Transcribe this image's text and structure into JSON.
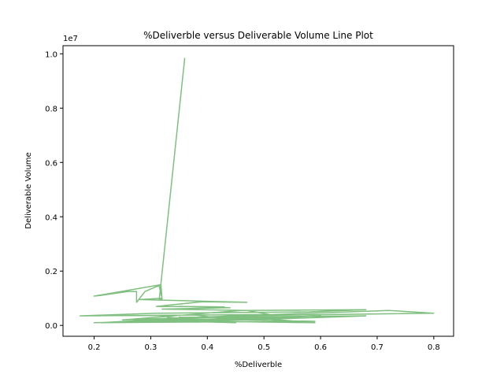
{
  "chart_data": {
    "type": "line",
    "title": "%Deliverble versus Deliverable Volume Line Plot",
    "xlabel": "%Deliverble",
    "ylabel": "Deliverable Volume",
    "y_offset_label": "1e7",
    "xlim": [
      0.145,
      0.835
    ],
    "ylim": [
      -400000,
      10300000
    ],
    "x_ticks": [
      0.2,
      0.3,
      0.4,
      0.5,
      0.6,
      0.7,
      0.8
    ],
    "x_tick_labels": [
      "0.2",
      "0.3",
      "0.4",
      "0.5",
      "0.6",
      "0.7",
      "0.8"
    ],
    "y_ticks": [
      0,
      2000000,
      4000000,
      6000000,
      8000000,
      10000000
    ],
    "y_tick_labels": [
      "0.0",
      "0.2",
      "0.4",
      "0.6",
      "0.8",
      "1.0"
    ],
    "grid": false,
    "series": [
      {
        "color": "#7fbf7f",
        "x": [
          0.36,
          0.315,
          0.32,
          0.318,
          0.2,
          0.21,
          0.26,
          0.275,
          0.275,
          0.29,
          0.31,
          0.315,
          0.32,
          0.28,
          0.47,
          0.39,
          0.31,
          0.43,
          0.35,
          0.44,
          0.32,
          0.47,
          0.51,
          0.175,
          0.31,
          0.58,
          0.68,
          0.46,
          0.25,
          0.72,
          0.8,
          0.44,
          0.21,
          0.53,
          0.2,
          0.55,
          0.35,
          0.68,
          0.4,
          0.43,
          0.37,
          0.41,
          0.46,
          0.22,
          0.5,
          0.42,
          0.3,
          0.2,
          0.59,
          0.45,
          0.38,
          0.5,
          0.6,
          0.35,
          0.38,
          0.33,
          0.45,
          0.27,
          0.4,
          0.59,
          0.5
        ],
        "y": [
          9850000,
          950000,
          950000,
          1500000,
          1080000,
          1100000,
          1250000,
          1250000,
          850000,
          1250000,
          1430000,
          1450000,
          1000000,
          950000,
          850000,
          870000,
          700000,
          680000,
          700000,
          650000,
          600000,
          550000,
          400000,
          350000,
          450000,
          500000,
          580000,
          550000,
          200000,
          550000,
          450000,
          350000,
          100000,
          300000,
          100000,
          280000,
          300000,
          350000,
          150000,
          250000,
          400000,
          300000,
          350000,
          100000,
          250000,
          200000,
          150000,
          100000,
          150000,
          200000,
          150000,
          250000,
          350000,
          200000,
          150000,
          300000,
          100000,
          200000,
          150000,
          100000,
          250000
        ]
      }
    ]
  }
}
